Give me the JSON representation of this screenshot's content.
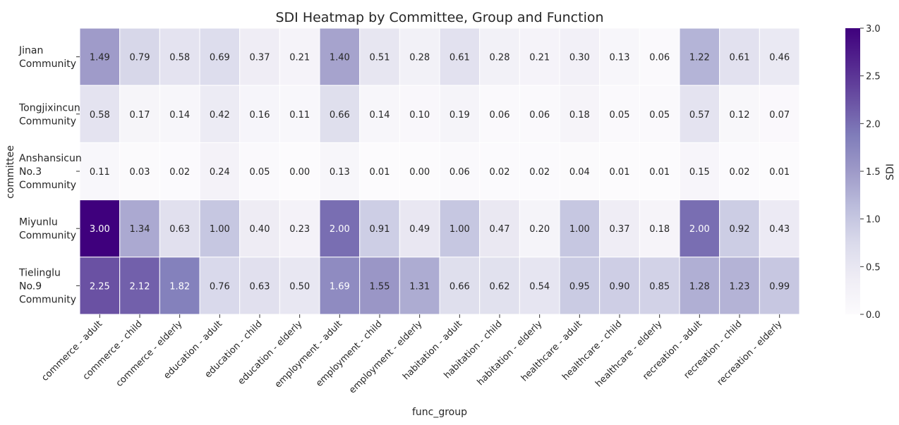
{
  "chart_data": {
    "type": "heatmap",
    "title": "SDI Heatmap by Committee, Group and Function",
    "xlabel": "func_group",
    "ylabel": "committee",
    "colorbar_label": "SDI",
    "colorbar_range": [
      0.0,
      3.0
    ],
    "colorbar_ticks": [
      "0.0",
      "0.5",
      "1.0",
      "1.5",
      "2.0",
      "2.5",
      "3.0"
    ],
    "colormap": "Purples",
    "colormap_stops": [
      "#fcfbfd",
      "#efedf5",
      "#dadaeb",
      "#bcbddc",
      "#9e9ac8",
      "#807dba",
      "#6a51a3",
      "#54278f",
      "#3f007d"
    ],
    "x_categories": [
      "commerce - adult",
      "commerce - child",
      "commerce - elderly",
      "education - adult",
      "education - child",
      "education - elderly",
      "employment - adult",
      "employment - child",
      "employment - elderly",
      "habitation - adult",
      "habitation - child",
      "habitation - elderly",
      "healthcare - adult",
      "healthcare - child",
      "healthcare - elderly",
      "recreation - adult",
      "recreation - child",
      "recreation - elderly"
    ],
    "y_categories": [
      [
        "Jinan",
        "Community"
      ],
      [
        "Tongjixincun",
        "Community"
      ],
      [
        "Anshansicun",
        "No.3",
        "Community"
      ],
      [
        "Miyunlu",
        "Community"
      ],
      [
        "Tielinglu",
        "No.9",
        "Community"
      ]
    ],
    "values": [
      [
        1.49,
        0.79,
        0.58,
        0.69,
        0.37,
        0.21,
        1.4,
        0.51,
        0.28,
        0.61,
        0.28,
        0.21,
        0.3,
        0.13,
        0.06,
        1.22,
        0.61,
        0.46
      ],
      [
        0.58,
        0.17,
        0.14,
        0.42,
        0.16,
        0.11,
        0.66,
        0.14,
        0.1,
        0.19,
        0.06,
        0.06,
        0.18,
        0.05,
        0.05,
        0.57,
        0.12,
        0.07
      ],
      [
        0.11,
        0.03,
        0.02,
        0.24,
        0.05,
        0.0,
        0.13,
        0.01,
        0.0,
        0.06,
        0.02,
        0.02,
        0.04,
        0.01,
        0.01,
        0.15,
        0.02,
        0.01
      ],
      [
        3.0,
        1.34,
        0.63,
        1.0,
        0.4,
        0.23,
        2.0,
        0.91,
        0.49,
        1.0,
        0.47,
        0.2,
        1.0,
        0.37,
        0.18,
        2.0,
        0.92,
        0.43
      ],
      [
        2.25,
        2.12,
        1.82,
        0.76,
        0.63,
        0.5,
        1.69,
        1.55,
        1.31,
        0.66,
        0.62,
        0.54,
        0.95,
        0.9,
        0.85,
        1.28,
        1.23,
        0.99
      ]
    ],
    "annotation_format": "2 decimals",
    "grid": false,
    "legend": "colorbar-right"
  }
}
